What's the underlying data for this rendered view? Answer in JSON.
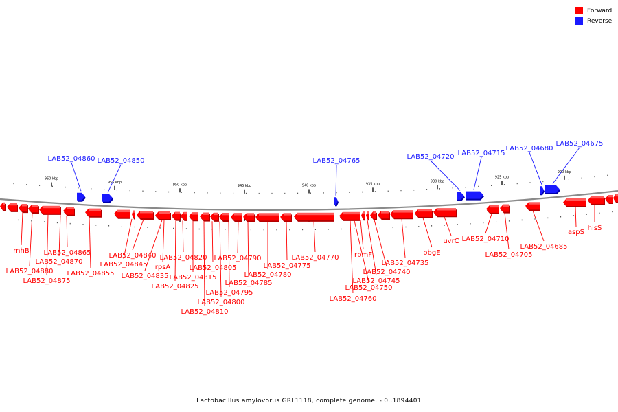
{
  "legend": {
    "forward_label": "Forward",
    "reverse_label": "Reverse",
    "forward_color": "#ff0000",
    "reverse_color": "#1a1aff"
  },
  "caption": "Lactobacillus amylovorus GRL1118, complete genome. - 0..1894401",
  "scale_ticks": [
    "960 kbp",
    "955 kbp",
    "950 kbp",
    "945 kbp",
    "940 kbp",
    "935 kbp",
    "930 kbp",
    "925 kbp",
    "920 kbp"
  ],
  "forward_genes": [
    "rnhB",
    "LAB52_04880",
    "LAB52_04875",
    "LAB52_04870",
    "LAB52_04865",
    "LAB52_04855",
    "LAB52_04845",
    "LAB52_04840",
    "LAB52_04835",
    "rpsA",
    "LAB52_04825",
    "LAB52_04820",
    "LAB52_04815",
    "LAB52_04810",
    "LAB52_04805",
    "LAB52_04800",
    "LAB52_04795",
    "LAB52_04790",
    "LAB52_04785",
    "LAB52_04780",
    "LAB52_04775",
    "LAB52_04770",
    "LAB52_04760",
    "LAB52_04750",
    "rpmF",
    "LAB52_04745",
    "LAB52_04740",
    "LAB52_04735",
    "obgE",
    "uvrC",
    "LAB52_04710",
    "LAB52_04705",
    "LAB52_04685",
    "aspS",
    "hisS"
  ],
  "reverse_genes": [
    "LAB52_04860",
    "LAB52_04850",
    "LAB52_04765",
    "LAB52_04720",
    "LAB52_04715",
    "LAB52_04680",
    "LAB52_04675"
  ]
}
